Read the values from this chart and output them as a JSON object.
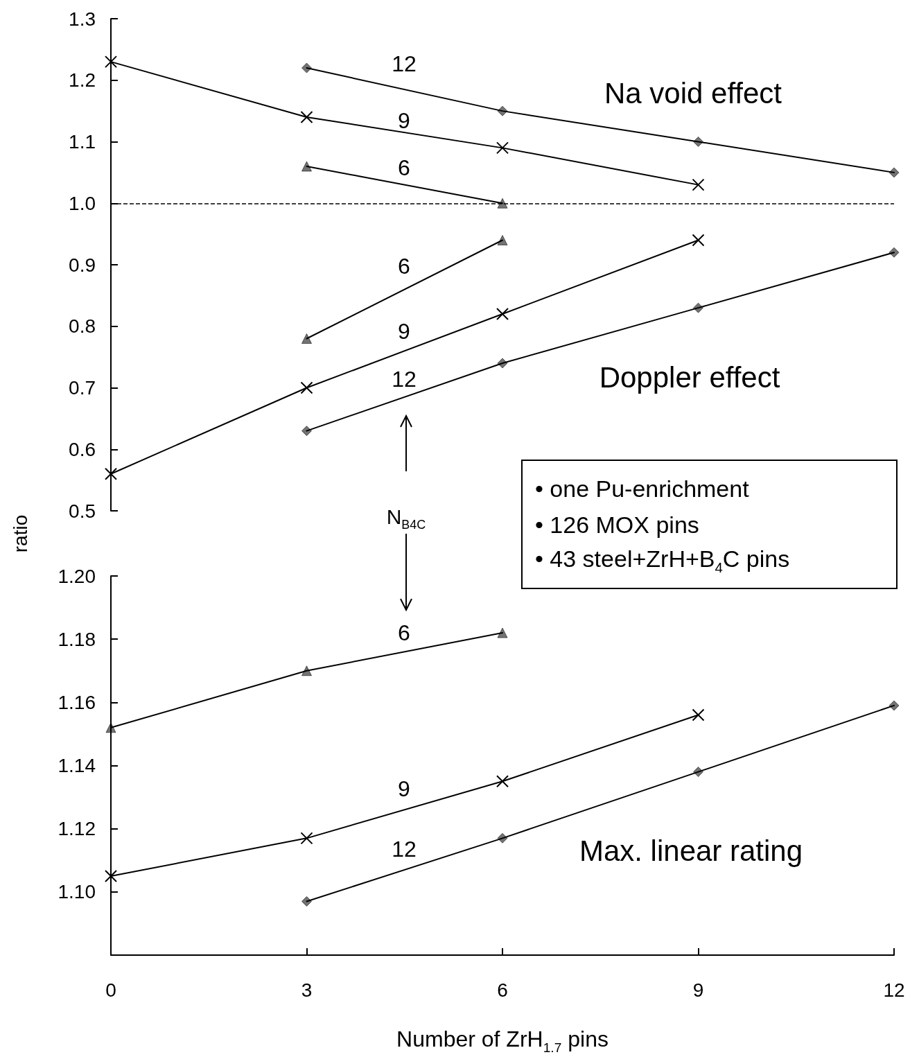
{
  "chart_data": [
    {
      "type": "line",
      "ylabel": "ratio",
      "x": [
        0,
        3,
        6,
        9,
        12
      ],
      "xlim": [
        0,
        12
      ],
      "xticks": [
        0,
        3,
        6,
        9,
        12
      ],
      "ylim": [
        0.5,
        1.3
      ],
      "yticks": [
        0.5,
        0.6,
        0.7,
        0.8,
        0.9,
        {
          "value": 1,
          "label": "1.0"
        },
        1.1,
        1.2,
        1.3
      ],
      "tick_labels": "y",
      "line_style": "solid",
      "series": [
        {
          "color": "#000000",
          "marker": "diamond",
          "values": [
            null,
            1.22,
            1.15,
            1.1,
            1.05
          ]
        },
        {
          "color": "#000000",
          "marker": "cross",
          "values": [
            1.23,
            1.14,
            1.09,
            1.03,
            null
          ]
        },
        {
          "color": "#000000",
          "marker": "triangle",
          "values": [
            null,
            1.06,
            1.0,
            null,
            null
          ]
        },
        {
          "color": "#000000",
          "marker": "triangle",
          "values": [
            null,
            0.78,
            0.94,
            null,
            null
          ]
        },
        {
          "color": "#000000",
          "marker": "cross",
          "values": [
            0.56,
            0.7,
            0.82,
            0.94,
            null
          ]
        },
        {
          "color": "#000000",
          "marker": "diamond",
          "values": [
            null,
            0.63,
            0.74,
            0.83,
            0.92
          ]
        }
      ],
      "ref_lines": [
        {
          "axis": "y",
          "value": 1,
          "color": "#000000",
          "line_style": "dashed"
        }
      ],
      "annotations": [
        "12",
        "9",
        "6",
        "6",
        "9",
        "12",
        "Na void effect",
        "Doppler effect",
        "• one Pu-enrichment",
        "• 126 MOX pins",
        "•  43 steel+ZrH+B$_{4}$C pins",
        "N$_{B4C}$"
      ]
    },
    {
      "type": "line",
      "xlabel": "Number of ZrH$_{1.7}$ pins",
      "x": [
        0,
        3,
        6,
        9,
        12
      ],
      "xlim": [
        0,
        12
      ],
      "xticks": [
        0,
        3,
        6,
        9,
        12
      ],
      "ylim": [
        1.08,
        1.2
      ],
      "yticks": [
        {
          "value": 1.1,
          "label": "1.10"
        },
        {
          "value": 1.12,
          "label": "1.12"
        },
        {
          "value": 1.14,
          "label": "1.14"
        },
        {
          "value": 1.16,
          "label": "1.16"
        },
        {
          "value": 1.18,
          "label": "1.18"
        },
        {
          "value": 1.2,
          "label": "1.20"
        }
      ],
      "line_style": "solid",
      "series": [
        {
          "color": "#000000",
          "marker": "triangle",
          "values": [
            1.152,
            1.17,
            1.182,
            null,
            null
          ]
        },
        {
          "color": "#000000",
          "marker": "cross",
          "values": [
            1.105,
            1.117,
            1.135,
            1.156,
            null
          ]
        },
        {
          "color": "#000000",
          "marker": "diamond",
          "values": [
            null,
            1.097,
            1.117,
            1.138,
            1.159
          ]
        }
      ],
      "annotations": [
        "6",
        "9",
        "12",
        "Max. linear rating"
      ]
    }
  ]
}
